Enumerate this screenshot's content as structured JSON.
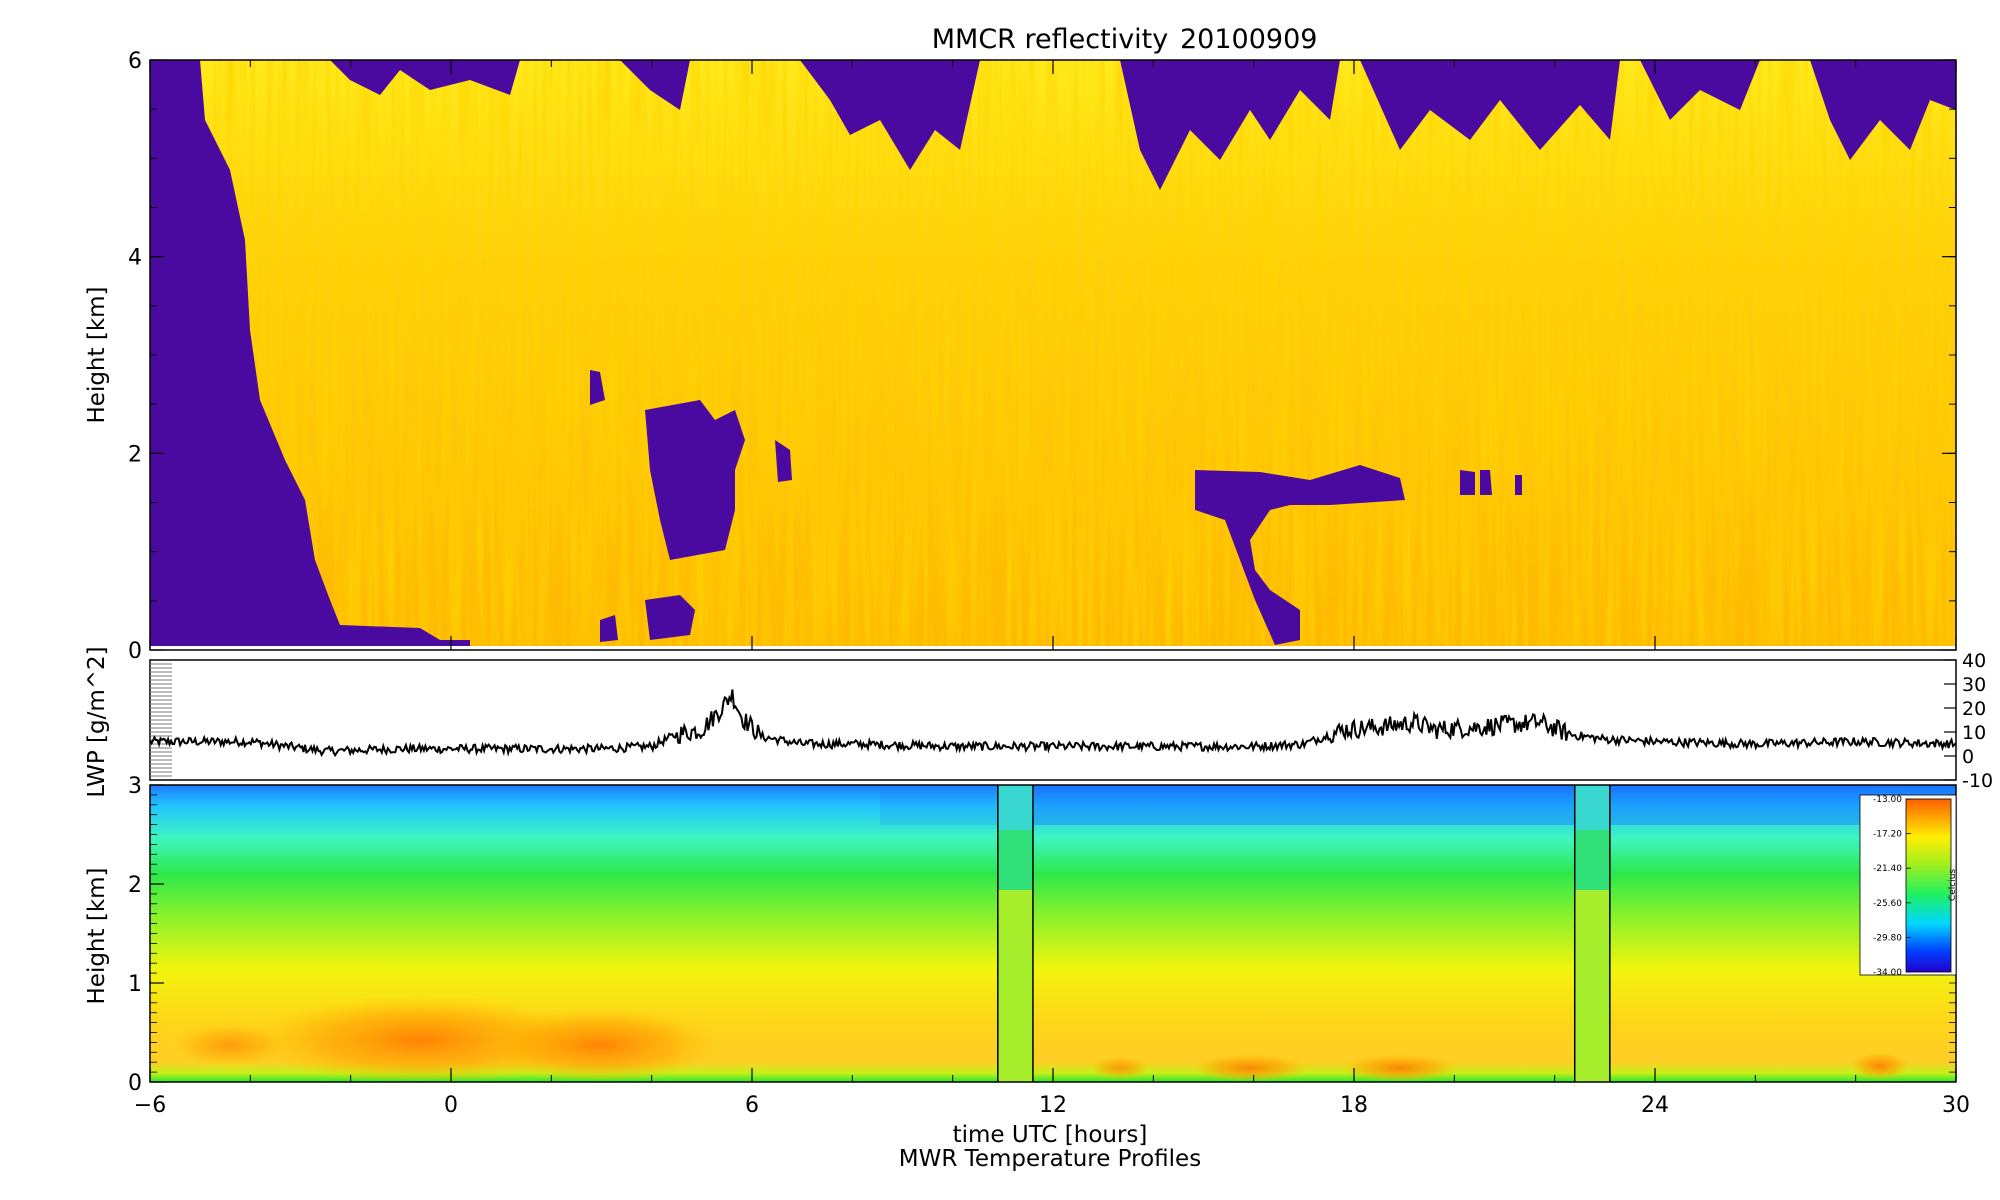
{
  "chart_data": [
    {
      "type": "heatmap",
      "title": "MMCR reflectivity",
      "date": "20100909",
      "ylabel": "Height [km]",
      "xlim": [
        -6,
        30
      ],
      "ylim": [
        0,
        6
      ],
      "x_ticks": [
        -6,
        0,
        6,
        12,
        18,
        24,
        30
      ],
      "y_ticks": [
        0,
        2,
        4,
        6
      ],
      "colors": {
        "no_echo": "#4a0aa0",
        "weak": "#ffff00",
        "mid": "#ffd400",
        "strong": "#ffaa00"
      },
      "no_echo_regions": [
        {
          "t_start": -6,
          "t_end": -3.5,
          "z_top": 6
        },
        {
          "t_start": 3.8,
          "t_end": 5.4,
          "z_bottom": 1.1,
          "z_top": 2.4
        },
        {
          "t_start": 15.5,
          "t_end": 18.5,
          "z_bottom": 1.4,
          "z_top": 1.7
        },
        {
          "t_start": 16.0,
          "t_end": 17.0,
          "z_bottom": 0.1,
          "z_top": 1.5
        }
      ]
    },
    {
      "type": "line",
      "ylabel": "LWP [g/m^2]",
      "xlim": [
        -6,
        30
      ],
      "ylim": [
        -10,
        40
      ],
      "y_ticks": [
        -10,
        0,
        10,
        20,
        30,
        40
      ],
      "series": [
        {
          "x": [
            -6,
            -4,
            -2.5,
            -1,
            0,
            1,
            2,
            3,
            4,
            4.5,
            5,
            5.4,
            5.6,
            5.8,
            6.2,
            7,
            8,
            10,
            12,
            14,
            15,
            16,
            17,
            17.8,
            18.5,
            19.2,
            19.6,
            20.5,
            21,
            21.7,
            22.3,
            23,
            24,
            26,
            28,
            30
          ],
          "y": [
            6,
            6,
            2,
            3,
            3,
            3,
            3,
            3,
            4,
            9,
            11,
            20,
            26,
            16,
            8,
            5,
            5,
            4,
            4,
            4,
            4,
            4,
            5,
            11,
            12,
            14,
            11,
            12,
            13,
            14,
            9,
            7,
            6,
            5,
            6,
            5
          ]
        }
      ]
    },
    {
      "type": "heatmap",
      "title": "MWR Temperature Profiles",
      "xlabel": "time UTC [hours]",
      "ylabel": "Height [km]",
      "xlim": [
        -6,
        30
      ],
      "ylim": [
        0,
        3
      ],
      "x_ticks": [
        -6,
        0,
        6,
        12,
        18,
        24,
        30
      ],
      "y_ticks": [
        0,
        1,
        2,
        3
      ],
      "data_gaps_hours": [
        [
          10.9,
          11.6
        ],
        [
          22.4,
          23.1
        ]
      ],
      "colorbar": {
        "unit": "Celcius",
        "ticks": [
          "-13.00",
          "-17.20",
          "-21.40",
          "-25.60",
          "-29.80",
          "-34.00"
        ],
        "range": [
          -34,
          -13
        ]
      }
    }
  ]
}
